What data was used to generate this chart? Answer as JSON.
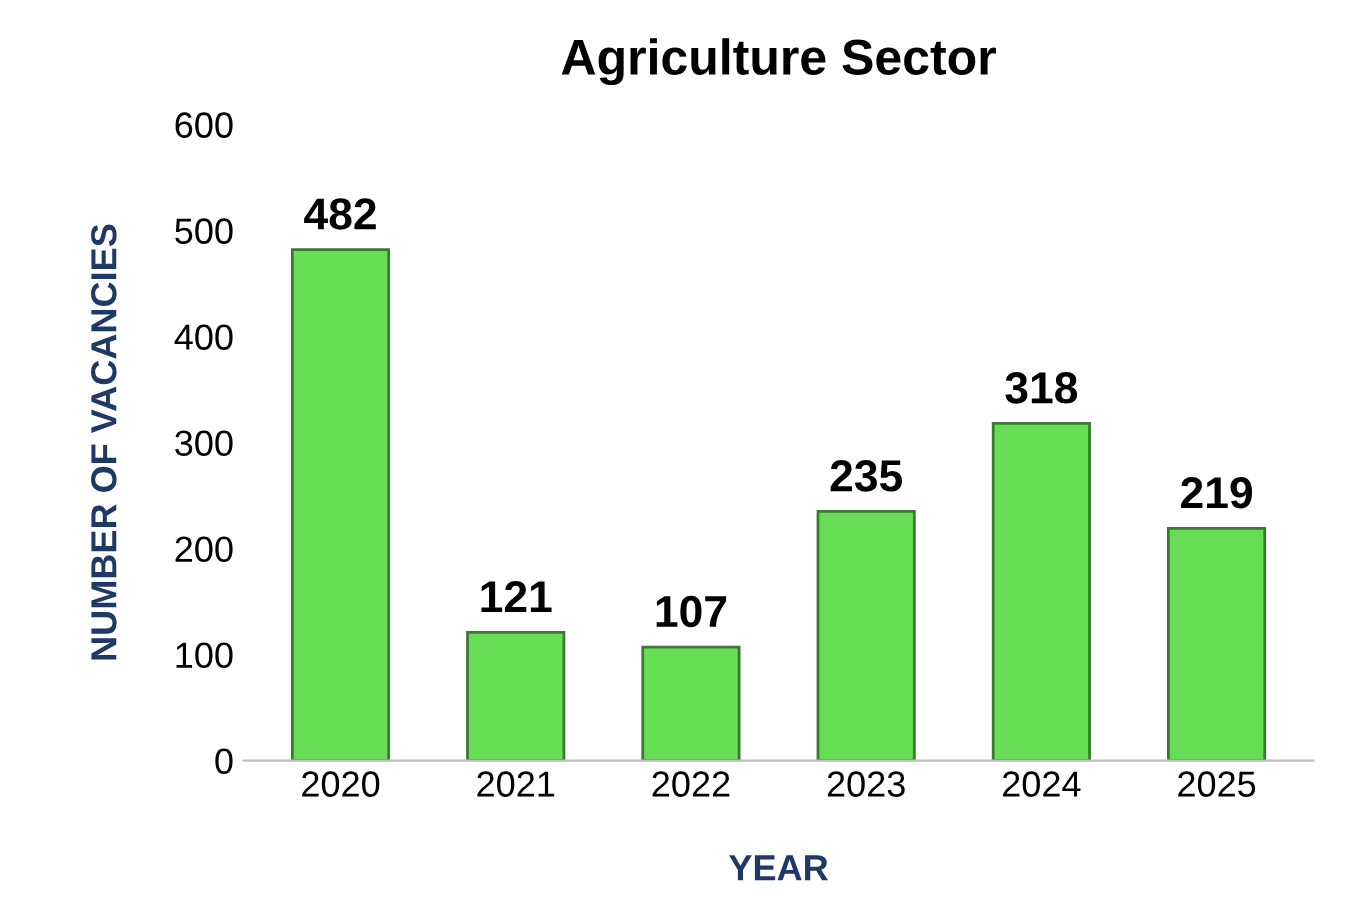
{
  "chart_data": {
    "type": "bar",
    "title": "Agriculture Sector",
    "xlabel": "YEAR",
    "ylabel": "NUMBER OF VACANCIES",
    "categories": [
      "2020",
      "2021",
      "2022",
      "2023",
      "2024",
      "2025"
    ],
    "values": [
      482,
      121,
      107,
      235,
      318,
      219
    ],
    "color": "#66dd55",
    "ylim": [
      0,
      600
    ],
    "yticks": [
      0,
      100,
      200,
      300,
      400,
      500,
      600
    ],
    "grid": false,
    "data_labels": true
  }
}
